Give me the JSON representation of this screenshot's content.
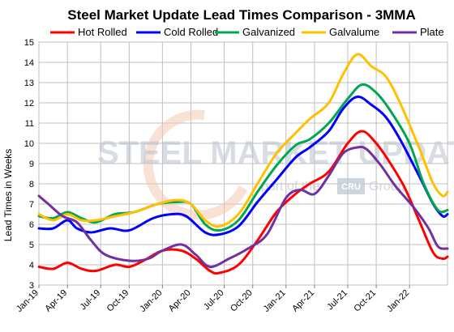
{
  "chart_data": {
    "type": "line",
    "title": "Steel Market Update Lead Times Comparison - 3MMA",
    "ylabel": "Lead Times in Weeks",
    "xlabel": "",
    "ylim": [
      3,
      15
    ],
    "yticks": [
      "3",
      "4",
      "5",
      "6",
      "7",
      "8",
      "9",
      "10",
      "11",
      "12",
      "13",
      "14",
      "15"
    ],
    "x_tick_labels": [
      "Jan-19",
      "Apr-19",
      "Jul-19",
      "Oct-19",
      "Jan-20",
      "Apr-20",
      "Jul-20",
      "Oct-20",
      "Jan-21",
      "Apr-21",
      "Jul-21",
      "Oct-21",
      "Jan-22"
    ],
    "x_tick_index": [
      0,
      6,
      13,
      19,
      26,
      32,
      39,
      45,
      52,
      58,
      65,
      71,
      78
    ],
    "n_points": 87,
    "grid": true,
    "legend_position": "top",
    "watermark": {
      "main": "STEEL MARKET UPDATE",
      "sub_prefix": "part of the",
      "sub_logo": "CRU",
      "sub_suffix": "Group"
    },
    "series": [
      {
        "name": "Hot Rolled",
        "color": "#ff0000",
        "knots": [
          [
            0,
            3.9
          ],
          [
            3,
            3.8
          ],
          [
            6,
            4.1
          ],
          [
            9,
            3.8
          ],
          [
            12,
            3.7
          ],
          [
            16,
            4.0
          ],
          [
            19,
            3.9
          ],
          [
            22,
            4.2
          ],
          [
            26,
            4.7
          ],
          [
            30,
            4.7
          ],
          [
            33,
            4.3
          ],
          [
            36,
            3.7
          ],
          [
            38,
            3.6
          ],
          [
            42,
            4.0
          ],
          [
            46,
            5.2
          ],
          [
            50,
            6.6
          ],
          [
            54,
            7.5
          ],
          [
            57,
            8.0
          ],
          [
            61,
            8.6
          ],
          [
            65,
            10.0
          ],
          [
            68,
            10.6
          ],
          [
            71,
            10.0
          ],
          [
            74,
            9.0
          ],
          [
            77,
            7.8
          ],
          [
            80,
            6.2
          ],
          [
            83,
            4.6
          ],
          [
            85,
            4.3
          ],
          [
            86,
            4.4
          ]
        ]
      },
      {
        "name": "Cold Rolled",
        "color": "#0000ff",
        "knots": [
          [
            0,
            5.8
          ],
          [
            3,
            5.8
          ],
          [
            6,
            6.2
          ],
          [
            8,
            5.8
          ],
          [
            11,
            5.6
          ],
          [
            15,
            5.8
          ],
          [
            19,
            5.7
          ],
          [
            24,
            6.3
          ],
          [
            28,
            6.5
          ],
          [
            31,
            6.4
          ],
          [
            35,
            5.6
          ],
          [
            38,
            5.5
          ],
          [
            42,
            5.9
          ],
          [
            46,
            7.1
          ],
          [
            50,
            8.2
          ],
          [
            54,
            9.3
          ],
          [
            57,
            9.8
          ],
          [
            61,
            10.6
          ],
          [
            64,
            11.7
          ],
          [
            67,
            12.3
          ],
          [
            70,
            11.9
          ],
          [
            73,
            11.3
          ],
          [
            76,
            10.2
          ],
          [
            80,
            8.4
          ],
          [
            83,
            7.0
          ],
          [
            85,
            6.4
          ],
          [
            86,
            6.5
          ]
        ]
      },
      {
        "name": "Galvanized",
        "color": "#00a651",
        "knots": [
          [
            0,
            6.4
          ],
          [
            3,
            6.3
          ],
          [
            6,
            6.6
          ],
          [
            9,
            6.3
          ],
          [
            12,
            6.1
          ],
          [
            16,
            6.5
          ],
          [
            20,
            6.6
          ],
          [
            25,
            7.0
          ],
          [
            29,
            7.1
          ],
          [
            32,
            7.0
          ],
          [
            35,
            6.0
          ],
          [
            38,
            5.7
          ],
          [
            42,
            6.2
          ],
          [
            46,
            7.6
          ],
          [
            50,
            8.9
          ],
          [
            54,
            9.9
          ],
          [
            57,
            10.2
          ],
          [
            61,
            11.0
          ],
          [
            65,
            12.2
          ],
          [
            68,
            12.9
          ],
          [
            71,
            12.5
          ],
          [
            74,
            11.6
          ],
          [
            78,
            10.0
          ],
          [
            81,
            8.0
          ],
          [
            84,
            6.7
          ],
          [
            86,
            6.7
          ]
        ]
      },
      {
        "name": "Galvalume",
        "color": "#ffc000",
        "knots": [
          [
            0,
            6.5
          ],
          [
            3,
            6.2
          ],
          [
            6,
            6.5
          ],
          [
            9,
            6.2
          ],
          [
            12,
            6.2
          ],
          [
            16,
            6.4
          ],
          [
            20,
            6.6
          ],
          [
            25,
            7.0
          ],
          [
            29,
            7.2
          ],
          [
            32,
            7.0
          ],
          [
            35,
            6.2
          ],
          [
            38,
            5.9
          ],
          [
            42,
            6.5
          ],
          [
            46,
            8.0
          ],
          [
            50,
            9.5
          ],
          [
            54,
            10.5
          ],
          [
            57,
            11.2
          ],
          [
            61,
            12.0
          ],
          [
            64,
            13.4
          ],
          [
            67,
            14.4
          ],
          [
            70,
            13.8
          ],
          [
            73,
            13.3
          ],
          [
            76,
            12.0
          ],
          [
            80,
            9.8
          ],
          [
            83,
            8.0
          ],
          [
            85,
            7.4
          ],
          [
            86,
            7.6
          ]
        ]
      },
      {
        "name": "Plate",
        "color": "#7030a0",
        "knots": [
          [
            0,
            7.4
          ],
          [
            2,
            7.0
          ],
          [
            5,
            6.4
          ],
          [
            8,
            6.1
          ],
          [
            11,
            5.2
          ],
          [
            14,
            4.5
          ],
          [
            19,
            4.2
          ],
          [
            23,
            4.3
          ],
          [
            26,
            4.7
          ],
          [
            30,
            5.0
          ],
          [
            33,
            4.5
          ],
          [
            36,
            3.9
          ],
          [
            40,
            4.3
          ],
          [
            44,
            4.8
          ],
          [
            48,
            5.5
          ],
          [
            52,
            7.3
          ],
          [
            55,
            7.7
          ],
          [
            58,
            7.5
          ],
          [
            61,
            8.4
          ],
          [
            64,
            9.5
          ],
          [
            67,
            9.8
          ],
          [
            69,
            9.7
          ],
          [
            72,
            8.9
          ],
          [
            75,
            7.9
          ],
          [
            79,
            6.8
          ],
          [
            82,
            5.8
          ],
          [
            84,
            4.9
          ],
          [
            86,
            4.8
          ]
        ]
      }
    ]
  }
}
